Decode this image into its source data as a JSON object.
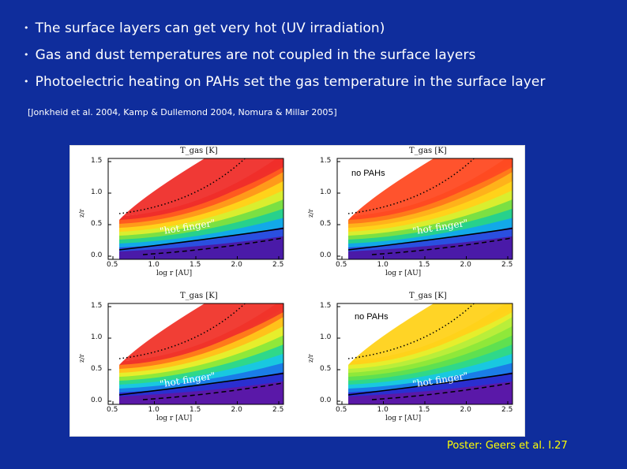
{
  "bullets": [
    "The surface layers can get very hot (UV irradiation)",
    "Gas and dust temperatures are not coupled in the surface layers",
    "Photoelectric heating on PAHs set the gas temperature in the surface layer"
  ],
  "bullet_symbol": "•",
  "references": "[Jonkheid et al. 2004, Kamp & Dullemond 2004, Nomura & Millar 2005]",
  "figure": {
    "panels": [
      {
        "title": "T_gas [K]",
        "annotation": "\"hot finger\"",
        "note": ""
      },
      {
        "title": "T_gas [K]",
        "annotation": "\"hot finger\"",
        "note": "no PAHs"
      },
      {
        "title": "T_gas [K]",
        "annotation": "\"hot finger\"",
        "note": ""
      },
      {
        "title": "T_gas [K]",
        "annotation": "\"hot finger\"",
        "note": "no PAHs"
      }
    ],
    "y_label": "z/r",
    "x_label": "log r [AU]",
    "y_ticks": [
      "1.5",
      "1.0",
      "0.5",
      "0.0"
    ],
    "x_ticks": [
      "0.5",
      "1.0",
      "1.5",
      "2.0",
      "2.5"
    ]
  },
  "poster": "Poster: Geers et al. I.27",
  "colors": {
    "background": "#0f2d9c",
    "text": "#ffffff",
    "poster_text": "#ffff00"
  }
}
